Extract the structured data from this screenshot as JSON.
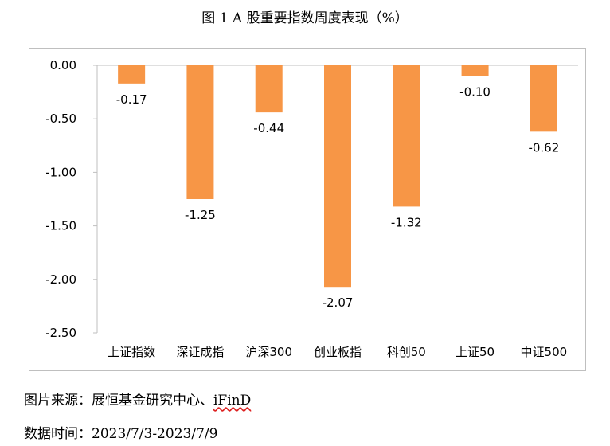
{
  "title": "图 1 A 股重要指数周度表现（%）",
  "source": {
    "label": "图片来源：",
    "text": "展恒基金研究中心、",
    "text_tail": "iFinD"
  },
  "data_time": {
    "label": "数据时间：",
    "text": "2023/7/3-2023/7/9"
  },
  "colors": {
    "bar": "#F79646",
    "axis": "#bfbfbf"
  },
  "chart_data": {
    "type": "bar",
    "title": "图 1 A 股重要指数周度表现（%）",
    "categories": [
      "上证指数",
      "深证成指",
      "沪深300",
      "创业板指",
      "科创50",
      "上证50",
      "中证500"
    ],
    "values": [
      -0.17,
      -1.25,
      -0.44,
      -2.07,
      -1.32,
      -0.1,
      -0.62
    ],
    "value_labels": [
      "-0.17",
      "-1.25",
      "-0.44",
      "-2.07",
      "-1.32",
      "-0.10",
      "-0.62"
    ],
    "yticks": [
      "0.00",
      "-0.50",
      "-1.00",
      "-1.50",
      "-2.00",
      "-2.50"
    ],
    "ytick_values": [
      0,
      -0.5,
      -1.0,
      -1.5,
      -2.0,
      -2.5
    ],
    "ylim": [
      -2.5,
      0
    ],
    "xlabel": "",
    "ylabel": "",
    "grid": false,
    "legend": "none"
  }
}
